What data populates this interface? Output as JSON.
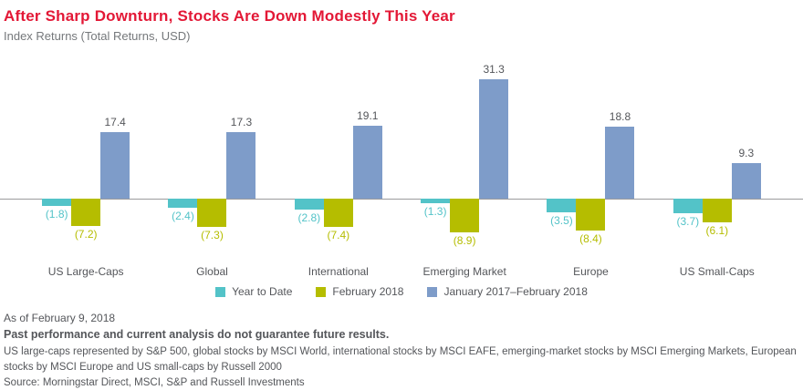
{
  "header": {
    "title": "After Sharp Downturn, Stocks Are Down Modestly This Year",
    "subtitle": "Index Returns (Total Returns, USD)"
  },
  "chart_data": {
    "type": "bar",
    "categories": [
      "US Large-Caps",
      "Global",
      "International",
      "Emerging Market",
      "Europe",
      "US Small-Caps"
    ],
    "series": [
      {
        "name": "Year to Date",
        "color": "#53c3c8",
        "values": [
          -1.8,
          -2.4,
          -2.8,
          -1.3,
          -3.5,
          -3.7
        ]
      },
      {
        "name": "February 2018",
        "color": "#b5bd00",
        "values": [
          -7.2,
          -7.3,
          -7.4,
          -8.9,
          -8.4,
          -6.1
        ]
      },
      {
        "name": "January 2017–February 2018",
        "color": "#7e9cc9",
        "values": [
          17.4,
          17.3,
          19.1,
          31.3,
          18.8,
          9.3
        ]
      }
    ],
    "ylim": [
      -12,
      34
    ],
    "grid": false,
    "legend_position": "bottom",
    "value_label_format": "negative values shown in parentheses, one decimal",
    "positive_label_color": "#54565a",
    "zero_line_color": "#9b9b9d"
  },
  "footer": {
    "as_of": "As of February 9, 2018",
    "disclaimer": "Past performance and current analysis do not guarantee future results.",
    "description": "US large-caps represented by S&P 500, global stocks by MSCI World, international stocks by MSCI EAFE, emerging-market stocks by MSCI Emerging Markets, European stocks by MSCI Europe and US small-caps by Russell 2000",
    "source": "Source: Morningstar Direct, MSCI, S&P and Russell Investments"
  },
  "colors": {
    "title": "#e31836",
    "text": "#54565a",
    "muted_text": "#75787b"
  }
}
